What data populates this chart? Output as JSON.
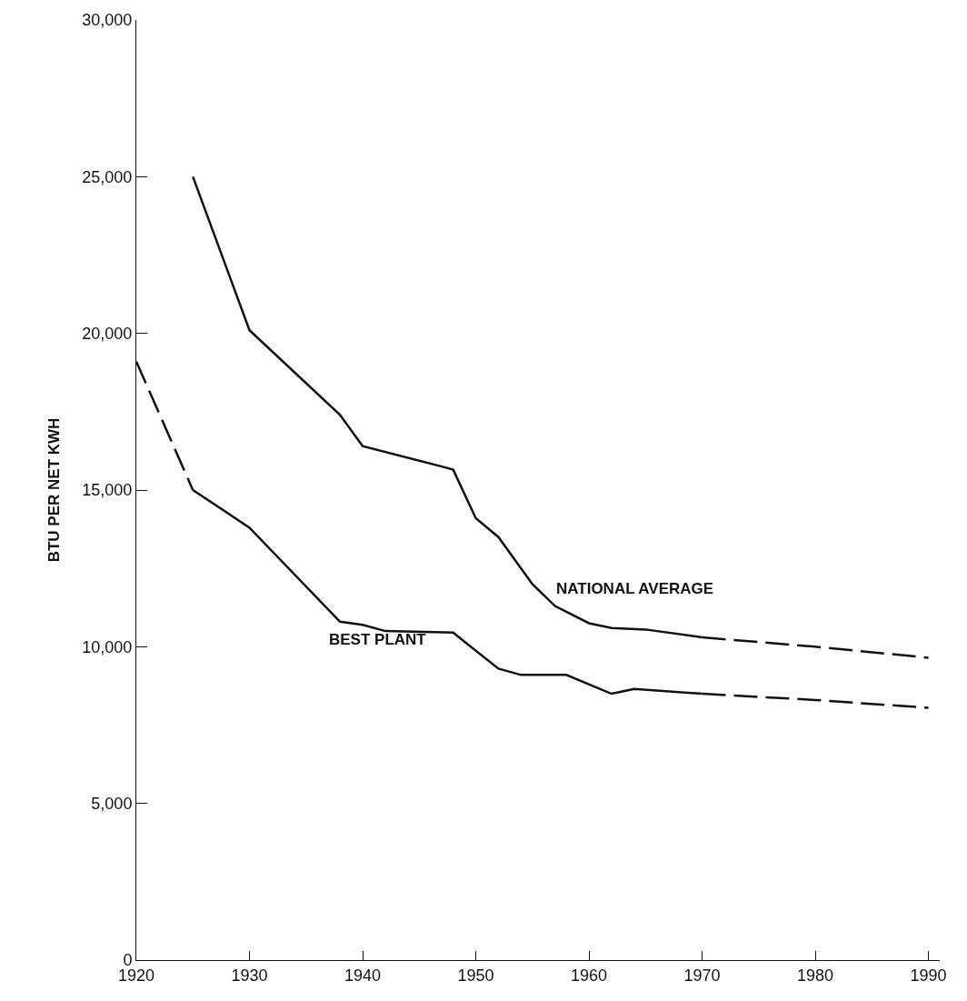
{
  "chart_data": {
    "type": "line",
    "ylabel": "BTU PER NET KWH",
    "xlim": [
      1920,
      1991
    ],
    "ylim": [
      0,
      30000
    ],
    "xticks": [
      1920,
      1930,
      1940,
      1950,
      1960,
      1970,
      1980,
      1990
    ],
    "yticks": [
      0,
      {
        "value": 5000,
        "label": "5,000"
      },
      {
        "value": 10000,
        "label": "10,000"
      },
      {
        "value": 15000,
        "label": "15,000"
      },
      {
        "value": 20000,
        "label": "20,000"
      },
      {
        "value": 25000,
        "label": "25,000"
      },
      {
        "value": 30000,
        "label": "30,000"
      }
    ],
    "legend": false,
    "marker": "none",
    "series": [
      {
        "name": "NATIONAL AVERAGE",
        "color": "#111111",
        "line_style": "solid",
        "x": [
          1925,
          1930,
          1938,
          1940,
          1947,
          1948,
          1950,
          1952,
          1955,
          1957,
          1960,
          1962,
          1965,
          1970
        ],
        "values": [
          25000,
          20100,
          17400,
          16400,
          15750,
          15650,
          14100,
          13500,
          12000,
          11300,
          10750,
          10600,
          10550,
          10300
        ]
      },
      {
        "color": "#111111",
        "line_style": "dashed",
        "x": [
          1970,
          1980,
          1990
        ],
        "values": [
          10300,
          10000,
          9650
        ]
      },
      {
        "name": "BEST PLANT",
        "color": "#111111",
        "line_style": "solid",
        "x": [
          1925,
          1930,
          1938,
          1940,
          1942,
          1948,
          1952,
          1954,
          1958,
          1962,
          1964,
          1970
        ],
        "values": [
          15000,
          13800,
          10800,
          10700,
          10500,
          10450,
          9300,
          9100,
          9100,
          8500,
          8650,
          8500
        ]
      },
      {
        "color": "#111111",
        "line_style": "dashed",
        "x": [
          1920,
          1925
        ],
        "values": [
          19100,
          15000
        ]
      },
      {
        "color": "#111111",
        "line_style": "dashed",
        "x": [
          1970,
          1980,
          1990
        ],
        "values": [
          8500,
          8300,
          8050
        ]
      }
    ]
  }
}
